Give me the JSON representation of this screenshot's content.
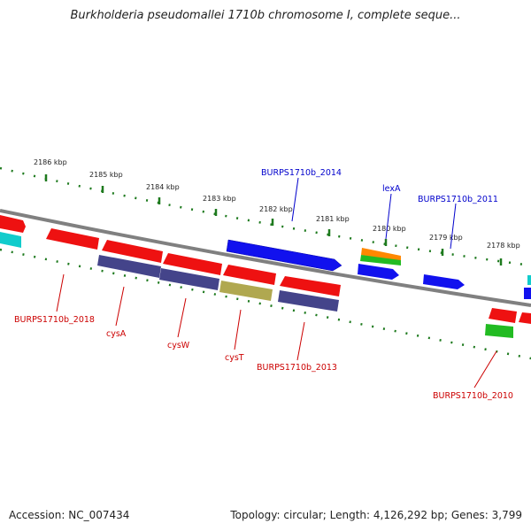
{
  "title": "Burkholderia pseudomallei 1710b chromosome I, complete seque...",
  "footer": {
    "accession": "Accession: NC_007434",
    "summary": "Topology: circular; Length: 4,126,292 bp; Genes: 3,799"
  },
  "scale_labels": [
    "2186 kbp",
    "2185 kbp",
    "2184 kbp",
    "2183 kbp",
    "2182 kbp",
    "2181 kbp",
    "2180 kbp",
    "2179 kbp",
    "2178 kbp"
  ],
  "gene_labels": {
    "forward": [
      "BURPS1710b_2014",
      "lexA",
      "BURPS1710b_2011"
    ],
    "reverse": [
      "BURPS1710b_2018",
      "cysA",
      "cysW",
      "cysT",
      "BURPS1710b_2013",
      "BURPS1710b_2010"
    ]
  },
  "colors": {
    "forward_label": "#0000cc",
    "reverse_label": "#cc0000",
    "backbone": "#808080",
    "tick": "#1e7a1e",
    "red_gene": "#ee1111",
    "blue_gene": "#1111ee",
    "purple_gene": "#44448a",
    "olive_gene": "#b0a850",
    "orange_gene": "#ff8800",
    "green_gene": "#22bb22",
    "cyan_gene": "#11cccc"
  }
}
